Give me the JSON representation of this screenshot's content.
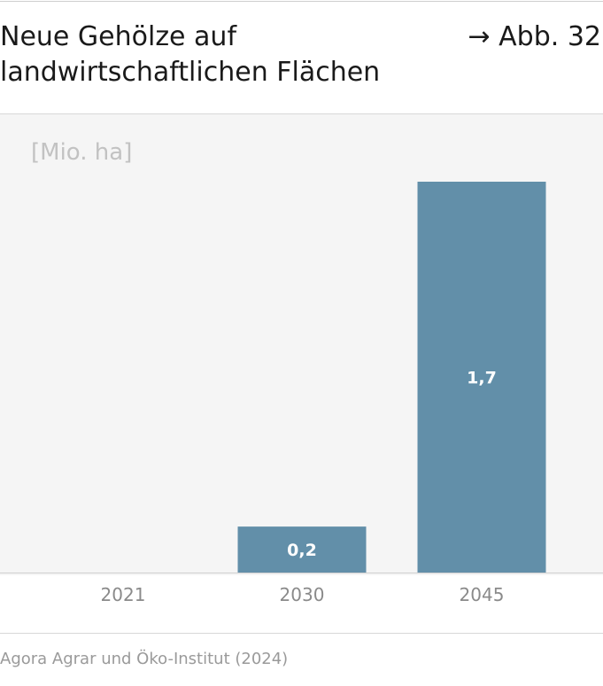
{
  "figure": {
    "title": "Neue Gehölze auf landwirtschaftlichen Flächen",
    "figure_ref": "→ Abb. 32",
    "source": "Agora Agrar und Öko-Institut (2024)"
  },
  "colors": {
    "bar": "#628fa9",
    "bar_label": "#ffffff",
    "tick_label": "#8a8a8a",
    "unit": "#c2c2c2",
    "plot_background": "#f5f5f5"
  },
  "chart_data": {
    "type": "bar",
    "title": "Neue Gehölze auf landwirtschaftlichen Flächen",
    "ylabel": "[Mio. ha]",
    "xlabel": "",
    "categories": [
      "2021",
      "2030",
      "2045"
    ],
    "values": [
      0,
      0.2,
      1.7
    ],
    "data_labels": [
      "",
      "0,2",
      "1,7"
    ],
    "ylim": [
      0,
      1.7
    ],
    "grid": false,
    "legend": "none"
  }
}
